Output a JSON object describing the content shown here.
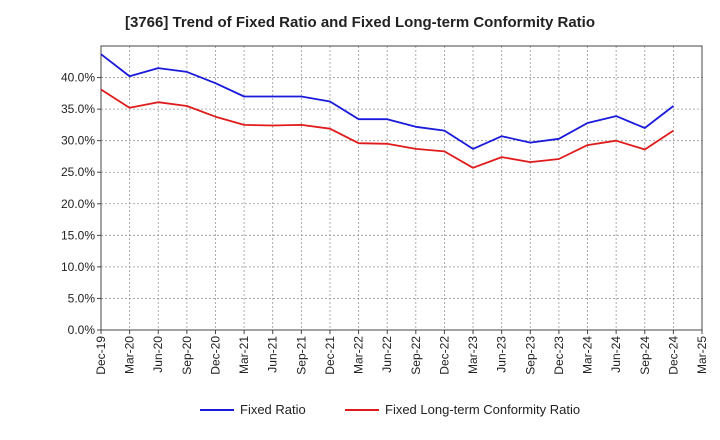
{
  "chart_data": {
    "type": "line",
    "title": "[3766]  Trend of Fixed Ratio and Fixed Long-term Conformity Ratio",
    "xlabel": "",
    "ylabel": "",
    "categories": [
      "Dec-19",
      "Mar-20",
      "Jun-20",
      "Sep-20",
      "Dec-20",
      "Mar-21",
      "Jun-21",
      "Sep-21",
      "Dec-21",
      "Mar-22",
      "Jun-22",
      "Sep-22",
      "Dec-22",
      "Mar-23",
      "Jun-23",
      "Sep-23",
      "Dec-23",
      "Mar-24",
      "Jun-24",
      "Sep-24",
      "Dec-24",
      "Mar-25"
    ],
    "ylim": [
      0,
      45
    ],
    "yticks": [
      0,
      5,
      10,
      15,
      20,
      25,
      30,
      35,
      40
    ],
    "ytick_labels": [
      "0.0%",
      "5.0%",
      "10.0%",
      "15.0%",
      "20.0%",
      "25.0%",
      "30.0%",
      "35.0%",
      "40.0%"
    ],
    "grid": true,
    "legend_position": "bottom",
    "series": [
      {
        "name": "Fixed Ratio",
        "color": "#1a1adb",
        "values": [
          43.7,
          40.2,
          41.5,
          40.9,
          39.1,
          37.0,
          37.0,
          37.0,
          36.2,
          33.4,
          33.4,
          32.2,
          31.6,
          28.7,
          30.7,
          29.7,
          30.3,
          32.8,
          33.9,
          32.0,
          35.5,
          null
        ]
      },
      {
        "name": "Fixed Long-term Conformity Ratio",
        "color": "#e01b1b",
        "values": [
          38.1,
          35.2,
          36.1,
          35.5,
          33.8,
          32.5,
          32.4,
          32.5,
          31.9,
          29.6,
          29.5,
          28.7,
          28.3,
          25.7,
          27.4,
          26.6,
          27.1,
          29.3,
          30.0,
          28.6,
          31.6,
          null
        ]
      }
    ]
  }
}
